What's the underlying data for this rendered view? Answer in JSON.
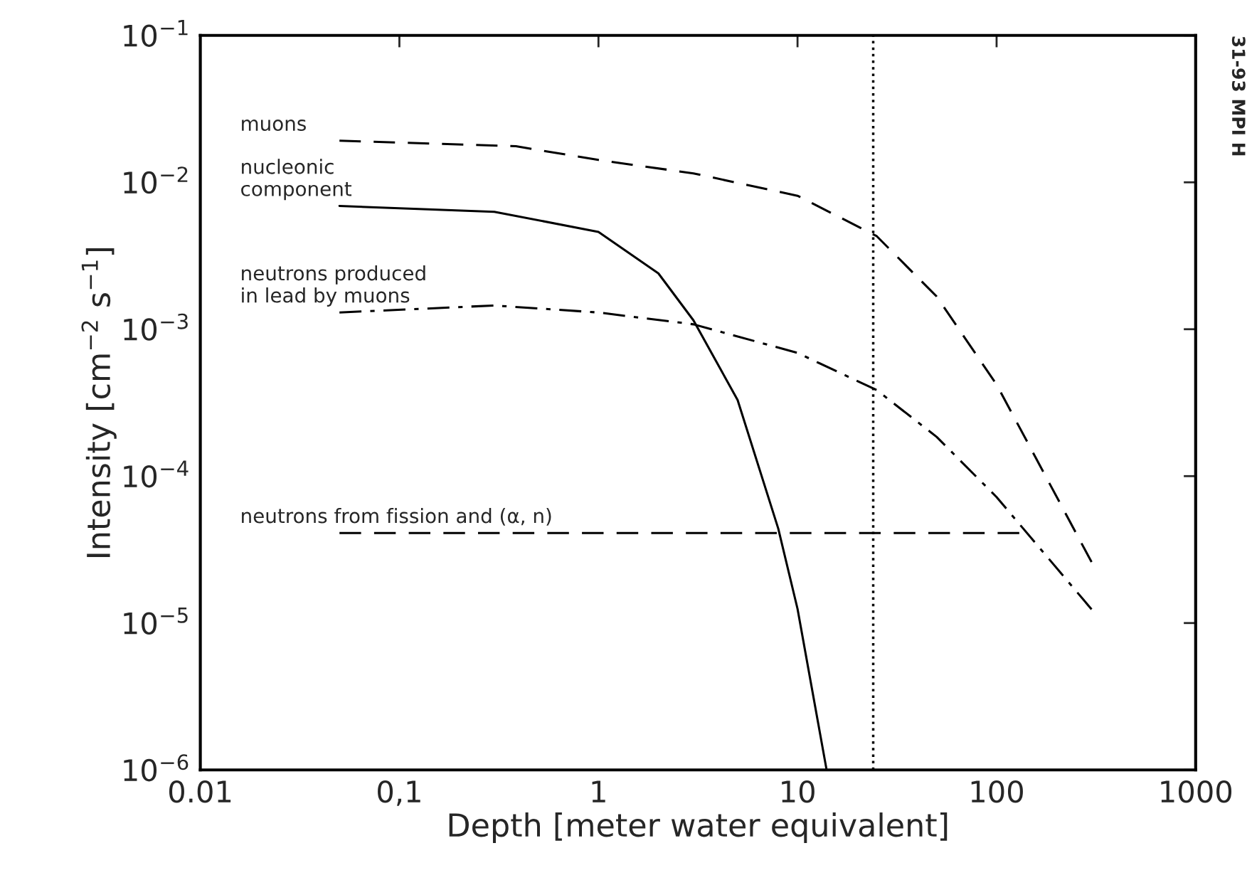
{
  "chart_data": {
    "type": "line",
    "xlabel": "Depth [meter water equivalent]",
    "ylabel": "Intensity [cm$^{−2}$ s$^{−1}$]",
    "log": "xy",
    "xlim": [
      0.01,
      1000
    ],
    "ylim": [
      1e-06,
      0.1
    ],
    "xticks": [
      {
        "value": 0.01,
        "label": "0.01"
      },
      {
        "value": 0.1,
        "label": "0,1"
      },
      1,
      10,
      100,
      1000
    ],
    "yticks": [
      {
        "value": 1e-06,
        "label": "10$^{−6}$"
      },
      {
        "value": 1e-05,
        "label": "10$^{−5}$"
      },
      {
        "value": 0.0001,
        "label": "10$^{−4}$"
      },
      {
        "value": 0.001,
        "label": "10$^{−3}$"
      },
      {
        "value": 0.01,
        "label": "10$^{−2}$"
      },
      {
        "value": 0.1,
        "label": "10$^{−1}$"
      }
    ],
    "grid": false,
    "legend": false,
    "marker": "none",
    "series": [
      {
        "name": "muons",
        "color": "#000000",
        "line_style": "dashed",
        "x": [
          0.05,
          0.385,
          1,
          3,
          10,
          25,
          50,
          100,
          300
        ],
        "values": [
          0.0192,
          0.0176,
          0.0142,
          0.0115,
          0.0081,
          0.0043,
          0.00167,
          0.00042,
          2.6e-05
        ]
      },
      {
        "name": "nucleonic\ncomponent",
        "color": "#000000",
        "line_style": "solid",
        "x": [
          0.05,
          0.3,
          1,
          2,
          3,
          5,
          8,
          10,
          14
        ],
        "values": [
          0.0069,
          0.0063,
          0.0046,
          0.0024,
          0.00115,
          0.00033,
          4.4e-05,
          1.25e-05,
          1e-06
        ]
      },
      {
        "name": "neutrons produced\nin lead by muons",
        "color": "#000000",
        "line_style": "dashdot",
        "x": [
          0.05,
          0.3,
          1,
          3,
          10,
          25,
          50,
          100,
          300
        ],
        "values": [
          0.0013,
          0.00145,
          0.0013,
          0.00108,
          0.00069,
          0.000385,
          0.000185,
          7.2e-05,
          1.24e-05
        ]
      },
      {
        "name": "neutrons from fission and (α, n)",
        "color": "#000000",
        "line_style": "dashed",
        "x": [
          0.05,
          130
        ],
        "values": [
          4.1e-05,
          4.1e-05
        ]
      }
    ],
    "ref_lines": [
      {
        "axis": "x",
        "value": 24,
        "color": "#000000",
        "line_style": "dotted"
      }
    ],
    "annotations": [
      "31-93 MPI H"
    ]
  }
}
